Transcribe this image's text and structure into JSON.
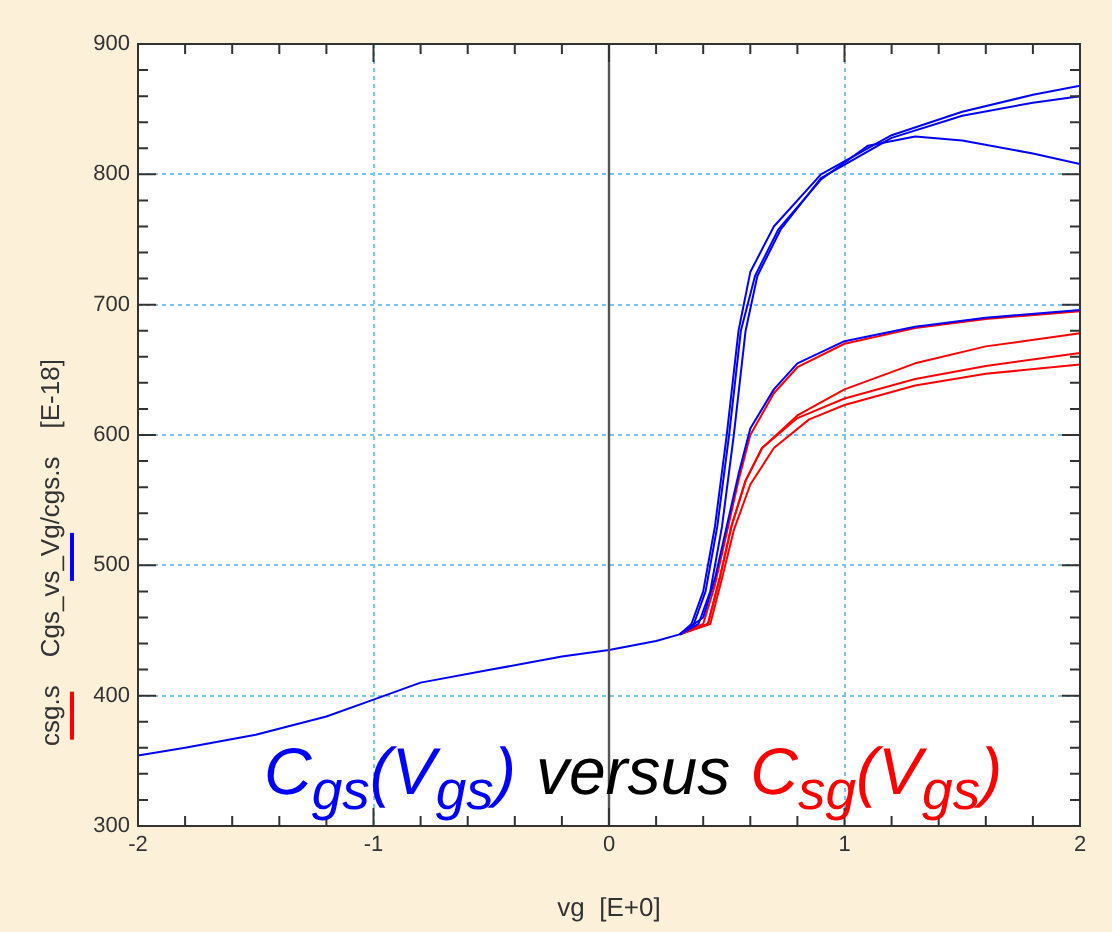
{
  "chart_data": {
    "type": "line",
    "xlabel": "vg  [E+0]",
    "ylabel": "[E-18]",
    "annotations": [
      "C$_{gs}$(V$_{gs}$)",
      "versus",
      "C$_{sg}$(V$_{gs}$)"
    ],
    "xlim": [
      -2,
      2
    ],
    "ylim": [
      300,
      900
    ],
    "xticks": [
      -2,
      {
        "value": -1.8,
        "label": null
      },
      {
        "value": -1.6,
        "label": null
      },
      {
        "value": -1.4,
        "label": null
      },
      {
        "value": -1.2,
        "label": null
      },
      -1,
      {
        "value": -0.8,
        "label": null
      },
      {
        "value": -0.6,
        "label": null
      },
      {
        "value": -0.4,
        "label": null
      },
      {
        "value": -0.2,
        "label": null
      },
      0,
      {
        "value": 0.2,
        "label": null
      },
      {
        "value": 0.4,
        "label": null
      },
      {
        "value": 0.6,
        "label": null
      },
      {
        "value": 0.8,
        "label": null
      },
      1,
      {
        "value": 1.2,
        "label": null
      },
      {
        "value": 1.4,
        "label": null
      },
      {
        "value": 1.6,
        "label": null
      },
      {
        "value": 1.8,
        "label": null
      },
      2
    ],
    "yticks": [
      300,
      {
        "value": 320,
        "label": null
      },
      {
        "value": 340,
        "label": null
      },
      {
        "value": 360,
        "label": null
      },
      {
        "value": 380,
        "label": null
      },
      400,
      {
        "value": 420,
        "label": null
      },
      {
        "value": 440,
        "label": null
      },
      {
        "value": 460,
        "label": null
      },
      {
        "value": 480,
        "label": null
      },
      500,
      {
        "value": 520,
        "label": null
      },
      {
        "value": 540,
        "label": null
      },
      {
        "value": 560,
        "label": null
      },
      {
        "value": 580,
        "label": null
      },
      600,
      {
        "value": 620,
        "label": null
      },
      {
        "value": 640,
        "label": null
      },
      {
        "value": 660,
        "label": null
      },
      {
        "value": 680,
        "label": null
      },
      700,
      {
        "value": 720,
        "label": null
      },
      {
        "value": 740,
        "label": null
      },
      {
        "value": 760,
        "label": null
      },
      {
        "value": 780,
        "label": null
      },
      800,
      {
        "value": 820,
        "label": null
      },
      {
        "value": 840,
        "label": null
      },
      {
        "value": 860,
        "label": null
      },
      {
        "value": 880,
        "label": null
      },
      900
    ],
    "grid": true,
    "legend": "left",
    "marker": "none",
    "line_style": "solid",
    "ref_lines": [
      {
        "axis": "x",
        "value": 0,
        "color": "#555555"
      }
    ],
    "series": [
      {
        "name": "Cgs_vs_Vg/cgs.s",
        "color": "#0000ff",
        "x": [
          -2,
          -1.8,
          -1.5,
          -1.2,
          -1,
          -0.8,
          -0.5,
          -0.2,
          0,
          0.2,
          0.3,
          0.35,
          0.4,
          0.45,
          0.5,
          0.55,
          0.6,
          0.7,
          0.9,
          1.2,
          1.5,
          1.8,
          2
        ],
        "values": [
          354,
          360,
          370,
          384,
          397,
          410,
          420,
          430,
          435,
          442,
          447,
          455,
          480,
          530,
          600,
          680,
          725,
          760,
          800,
          830,
          848,
          861,
          868
        ]
      },
      {
        "color": "#0000ff",
        "x": [
          0.3,
          0.38,
          0.43,
          0.48,
          0.53,
          0.58,
          0.63,
          0.73,
          0.9,
          1.2,
          1.5,
          1.8,
          2
        ],
        "values": [
          447,
          455,
          480,
          530,
          600,
          680,
          722,
          758,
          797,
          828,
          845,
          855,
          860
        ]
      },
      {
        "color": "#0000ff",
        "x": [
          0.3,
          0.36,
          0.41,
          0.46,
          0.51,
          0.56,
          0.62,
          0.72,
          0.9,
          1.1,
          1.3,
          1.5,
          1.8,
          2
        ],
        "values": [
          447,
          455,
          480,
          530,
          600,
          680,
          722,
          758,
          796,
          822,
          829,
          826,
          816,
          808
        ]
      },
      {
        "color": "#0000ff",
        "x": [
          0.3,
          0.4,
          0.45,
          0.5,
          0.55,
          0.6,
          0.7,
          0.8,
          1,
          1.3,
          1.6,
          2
        ],
        "values": [
          447,
          460,
          490,
          530,
          570,
          605,
          635,
          655,
          672,
          683,
          690,
          696
        ]
      },
      {
        "name": "csg.s",
        "color": "#ff0000",
        "x": [
          0.3,
          0.4,
          0.45,
          0.5,
          0.55,
          0.6,
          0.7,
          0.8,
          1,
          1.3,
          1.6,
          2
        ],
        "values": [
          447,
          455,
          485,
          525,
          565,
          600,
          632,
          652,
          670,
          682,
          689,
          695
        ]
      },
      {
        "color": "#ff0000",
        "x": [
          0.3,
          0.42,
          0.47,
          0.52,
          0.58,
          0.65,
          0.8,
          1,
          1.3,
          1.6,
          2
        ],
        "values": [
          447,
          455,
          490,
          530,
          565,
          590,
          615,
          635,
          655,
          668,
          678
        ]
      },
      {
        "color": "#ff0000",
        "x": [
          0.3,
          0.42,
          0.47,
          0.52,
          0.58,
          0.65,
          0.8,
          1,
          1.3,
          1.6,
          2
        ],
        "values": [
          447,
          455,
          490,
          530,
          565,
          590,
          613,
          628,
          643,
          653,
          663
        ]
      },
      {
        "color": "#ff0000",
        "x": [
          0.3,
          0.43,
          0.48,
          0.53,
          0.6,
          0.7,
          0.85,
          1,
          1.3,
          1.6,
          2
        ],
        "values": [
          447,
          455,
          490,
          527,
          562,
          590,
          612,
          623,
          638,
          647,
          654
        ]
      }
    ]
  }
}
